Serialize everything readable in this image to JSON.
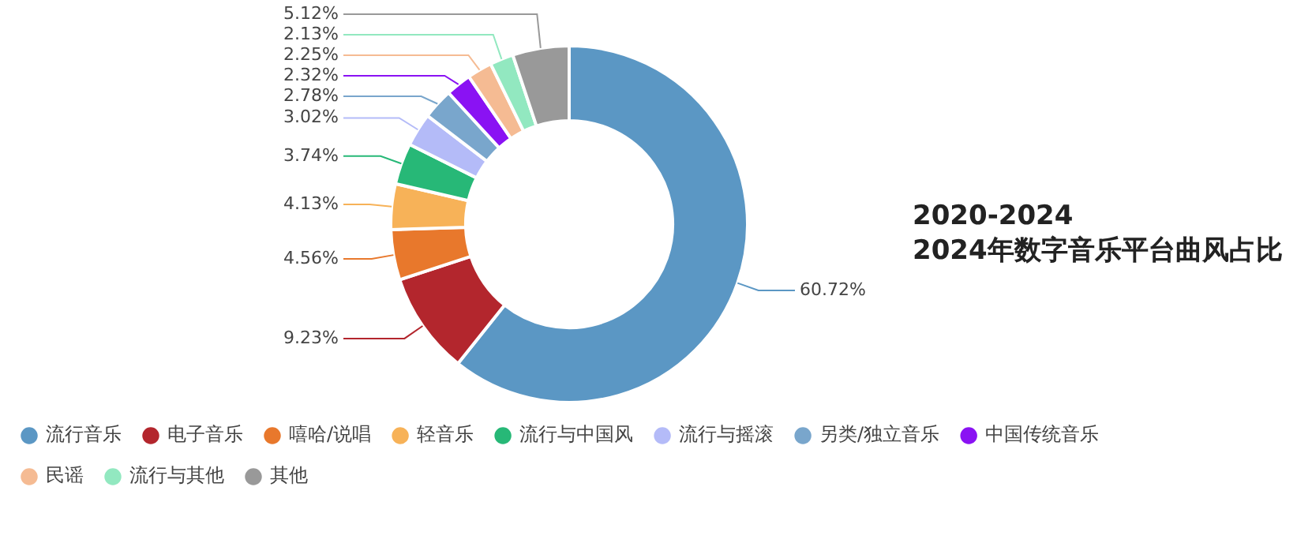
{
  "chart_data": {
    "type": "donut",
    "title": "2020-2024",
    "subtitle": "2024年数字音乐平台曲风占比",
    "categories": [
      "流行音乐",
      "电子音乐",
      "嘻哈/说唱",
      "轻音乐",
      "流行与中国风",
      "流行与摇滚",
      "另类/独立音乐",
      "中国传统音乐",
      "民谣",
      "流行与其他",
      "其他"
    ],
    "values": [
      60.72,
      9.23,
      4.56,
      4.13,
      3.74,
      3.02,
      2.78,
      2.32,
      2.25,
      2.13,
      5.12
    ],
    "value_labels": [
      "60.72%",
      "9.23%",
      "4.56%",
      "4.13%",
      "3.74%",
      "3.02%",
      "2.78%",
      "2.32%",
      "2.25%",
      "2.13%",
      "5.12%"
    ],
    "colors": [
      "#5b97c4",
      "#b3262d",
      "#e8782c",
      "#f7b258",
      "#27b877",
      "#b4bbf8",
      "#79a6cc",
      "#8a12f3",
      "#f5bb93",
      "#92e8c0",
      "#999999"
    ],
    "legend": "bottom"
  }
}
